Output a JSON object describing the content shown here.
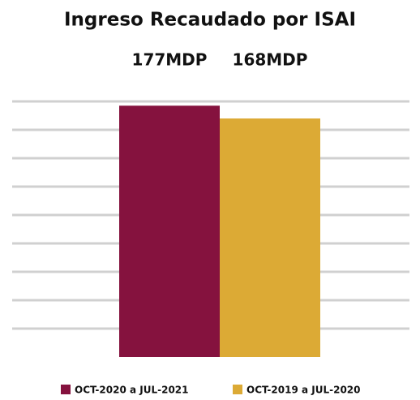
{
  "chart_data": {
    "type": "bar",
    "title": "Ingreso Recaudado por ISAI",
    "categories": [
      null
    ],
    "series": [
      {
        "name": "OCT-2020 a JUL-2021",
        "color": "#85123e",
        "values": [
          177
        ],
        "value_labels": [
          "177MDP"
        ]
      },
      {
        "name": "OCT-2019 a JUL-2020",
        "color": "#dcaa35",
        "values": [
          168
        ],
        "value_labels": [
          "168MDP"
        ]
      }
    ],
    "ylim": [
      0,
      200
    ],
    "yticks": [
      20,
      40,
      60,
      80,
      100,
      120,
      140,
      160,
      180
    ],
    "grid": true,
    "legend": "bottom"
  }
}
